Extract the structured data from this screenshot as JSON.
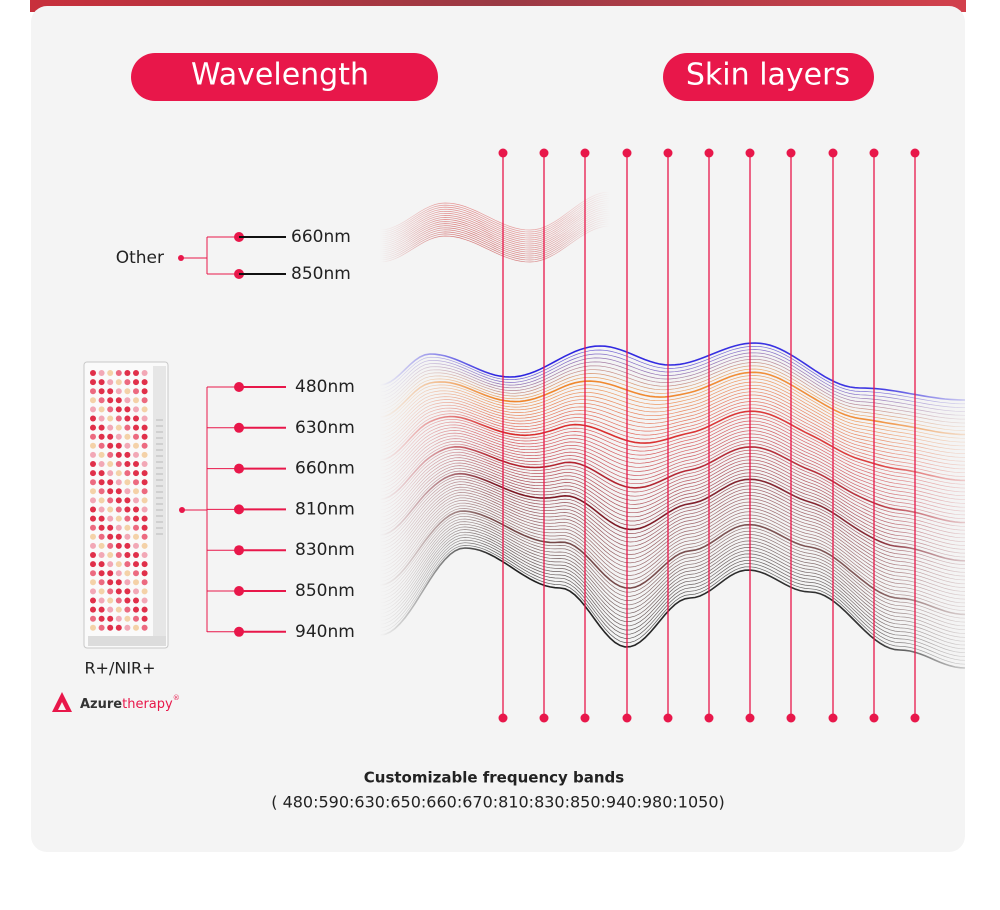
{
  "header": {
    "wavelength_label": "Wavelength",
    "skin_layers_label": "Skin layers"
  },
  "other": {
    "label": "Other",
    "wavelengths": [
      "660nm",
      "850nm"
    ]
  },
  "product": {
    "wavelengths": [
      "480nm",
      "630nm",
      "660nm",
      "810nm",
      "830nm",
      "850nm",
      "940nm"
    ],
    "name": "R+/NIR+"
  },
  "brand": {
    "part1": "Azure",
    "part2": "therapy",
    "mark": "®"
  },
  "footer": {
    "title": "Customizable frequency bands",
    "bands": "( 480:590:630:650:660:670:810:830:850:940:980:1050)"
  }
}
